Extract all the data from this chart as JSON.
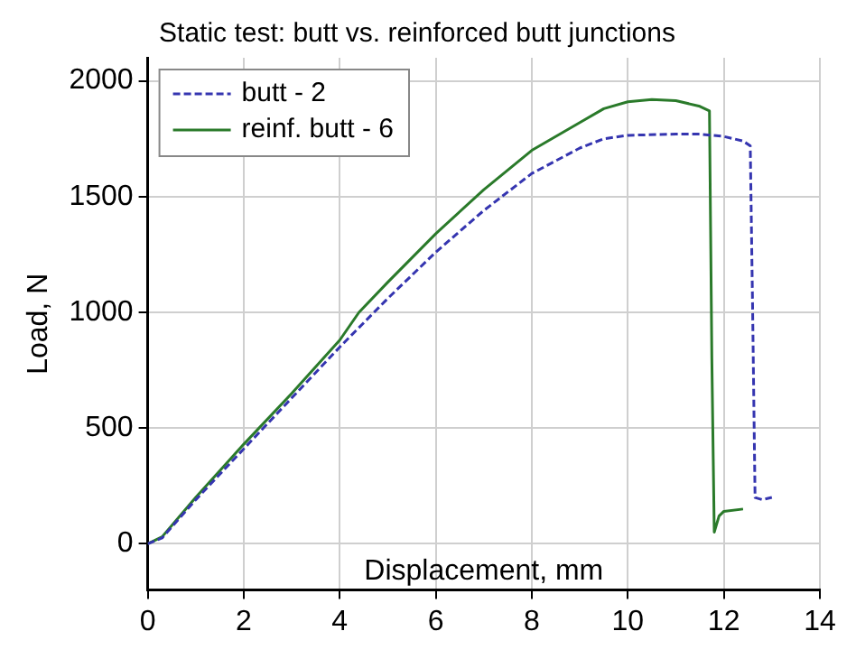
{
  "chart_data": {
    "type": "line",
    "title": "Static test: butt vs. reinforced butt junctions",
    "xlabel": "Displacement, mm",
    "ylabel": "Load, N",
    "xlim": [
      0,
      14
    ],
    "xticks": [
      0,
      2,
      4,
      6,
      8,
      10,
      12,
      14
    ],
    "ylim": [
      -200,
      2100
    ],
    "yticks": [
      0,
      500,
      1000,
      1500,
      2000
    ],
    "grid": true,
    "legend": "top left",
    "marker": "none",
    "series": [
      {
        "name": "butt - 2",
        "color": "#3535b0",
        "line_style": "dashed",
        "x": [
          0,
          0.3,
          1,
          2,
          3,
          4,
          5,
          6,
          7,
          8,
          9,
          9.5,
          10,
          11,
          11.5,
          12,
          12.4,
          12.55,
          12.6,
          12.65,
          12.8,
          13.0
        ],
        "values": [
          0,
          25,
          190,
          410,
          630,
          850,
          1060,
          1260,
          1440,
          1600,
          1710,
          1750,
          1765,
          1770,
          1770,
          1760,
          1740,
          1720,
          1000,
          200,
          190,
          200
        ]
      },
      {
        "name": "reinf. butt - 6",
        "color": "#2a7a2a",
        "line_style": "solid",
        "x": [
          0,
          0.3,
          1,
          2,
          3,
          4,
          4.4,
          5,
          6,
          7,
          8,
          9,
          9.5,
          10,
          10.5,
          11,
          11.5,
          11.7,
          11.75,
          11.8,
          11.9,
          12,
          12.4
        ],
        "values": [
          0,
          30,
          200,
          430,
          650,
          880,
          1000,
          1130,
          1340,
          1530,
          1700,
          1820,
          1880,
          1910,
          1920,
          1915,
          1890,
          1870,
          800,
          50,
          120,
          140,
          150
        ]
      }
    ]
  }
}
